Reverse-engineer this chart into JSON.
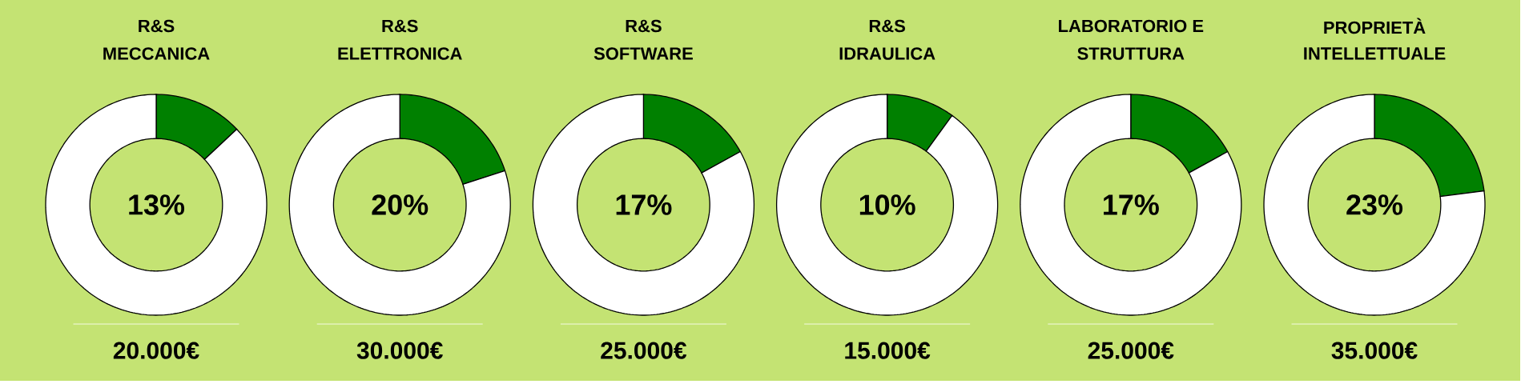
{
  "chart_data": [
    {
      "type": "donut",
      "title": "R&S",
      "subtitle": "MECCANICA",
      "categories": [
        null,
        null
      ],
      "values": [
        13,
        87
      ],
      "colors": [
        "#008000",
        "#ffffff"
      ],
      "annotations": [
        "13%",
        "20.000€"
      ]
    },
    {
      "type": "donut",
      "title": "R&S",
      "subtitle": "ELETTRONICA",
      "categories": [
        null,
        null
      ],
      "values": [
        20,
        80
      ],
      "colors": [
        "#008000",
        "#ffffff"
      ],
      "annotations": [
        "20%",
        "30.000€"
      ]
    },
    {
      "type": "donut",
      "title": "R&S",
      "subtitle": "SOFTWARE",
      "categories": [
        null,
        null
      ],
      "values": [
        17,
        83
      ],
      "colors": [
        "#008000",
        "#ffffff"
      ],
      "annotations": [
        "17%",
        "25.000€"
      ]
    },
    {
      "type": "donut",
      "title": "R&S",
      "subtitle": "IDRAULICA",
      "categories": [
        null,
        null
      ],
      "values": [
        10,
        90
      ],
      "colors": [
        "#008000",
        "#ffffff"
      ],
      "annotations": [
        "10%",
        "15.000€"
      ]
    },
    {
      "type": "donut",
      "title": "LABORATORIO E",
      "subtitle": "STRUTTURA",
      "categories": [
        null,
        null
      ],
      "values": [
        17,
        83
      ],
      "colors": [
        "#008000",
        "#ffffff"
      ],
      "annotations": [
        "17%",
        "25.000€"
      ]
    },
    {
      "type": "donut",
      "title": "PROPRIETÀ",
      "subtitle": "INTELLETTUALE",
      "categories": [
        null,
        null
      ],
      "values": [
        23,
        77
      ],
      "colors": [
        "#008000",
        "#ffffff"
      ],
      "annotations": [
        "23%",
        "35.000€"
      ]
    }
  ]
}
